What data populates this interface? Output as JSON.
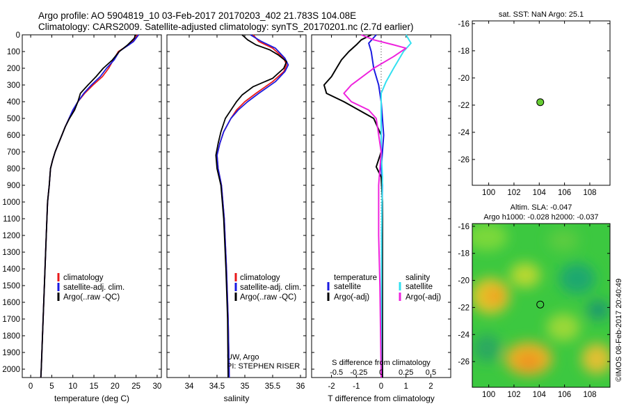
{
  "title": {
    "line1": "Argo profile: AO 5904819_10 03-Feb-2017 20170203_402 21.783S 104.08E",
    "line2": "Climatology: CARS2009. Satellite-adjusted climatology: synTS_20170201.nc (2.7d earlier)"
  },
  "colors": {
    "climatology": "#e8181a",
    "satellite": "#1a1ae0",
    "argo": "#000000",
    "salinity_sat": "#33e0f0",
    "salinity_argo": "#ee22dd",
    "dot": "#66cc33"
  },
  "depth_axis": {
    "ylim": [
      0,
      2050
    ],
    "ticks": [
      0,
      100,
      200,
      300,
      400,
      500,
      600,
      700,
      800,
      900,
      1000,
      1100,
      1200,
      1300,
      1400,
      1500,
      1600,
      1700,
      1800,
      1900,
      2000
    ]
  },
  "chart_data": [
    {
      "type": "line",
      "panel": "temperature",
      "xlabel": "temperature (deg C)",
      "xlim": [
        -2,
        31
      ],
      "xticks": [
        0,
        5,
        10,
        15,
        20,
        25,
        30
      ],
      "ylim": [
        0,
        2050
      ],
      "legend": [
        "climatology",
        "satellite-adj. clim.",
        "Argo(..raw -QC)"
      ],
      "series": [
        {
          "name": "climatology",
          "color": "#e8181a",
          "points": [
            [
              25.3,
              0
            ],
            [
              24.8,
              20
            ],
            [
              24.2,
              40
            ],
            [
              23.3,
              60
            ],
            [
              22,
              80
            ],
            [
              20.8,
              100
            ],
            [
              19.6,
              150
            ],
            [
              18.5,
              200
            ],
            [
              17,
              250
            ],
            [
              14.8,
              300
            ],
            [
              12.8,
              350
            ],
            [
              11.2,
              400
            ],
            [
              10.1,
              450
            ],
            [
              9.1,
              500
            ],
            [
              8.2,
              550
            ],
            [
              7.4,
              600
            ],
            [
              6.6,
              650
            ],
            [
              5.8,
              700
            ],
            [
              5.2,
              750
            ],
            [
              4.7,
              800
            ],
            [
              4.4,
              900
            ],
            [
              4.0,
              1000
            ],
            [
              3.7,
              1200
            ],
            [
              3.4,
              1400
            ],
            [
              3.1,
              1600
            ],
            [
              2.8,
              1800
            ],
            [
              2.5,
              2000
            ],
            [
              2.4,
              2050
            ]
          ]
        },
        {
          "name": "satellite-adj. clim.",
          "color": "#1a1ae0",
          "points": [
            [
              25.6,
              0
            ],
            [
              25,
              20
            ],
            [
              24.4,
              40
            ],
            [
              23.3,
              60
            ],
            [
              22.1,
              80
            ],
            [
              21,
              100
            ],
            [
              19.8,
              150
            ],
            [
              18,
              200
            ],
            [
              16.5,
              250
            ],
            [
              14.4,
              300
            ],
            [
              12.6,
              350
            ],
            [
              11.2,
              400
            ],
            [
              10,
              450
            ],
            [
              9.1,
              500
            ],
            [
              8.2,
              550
            ],
            [
              7.4,
              600
            ],
            [
              6.6,
              650
            ],
            [
              5.8,
              700
            ],
            [
              5.2,
              750
            ],
            [
              4.7,
              800
            ],
            [
              4.4,
              900
            ],
            [
              4.0,
              1000
            ],
            [
              3.7,
              1200
            ],
            [
              3.4,
              1400
            ],
            [
              3.1,
              1600
            ],
            [
              2.8,
              1800
            ],
            [
              2.5,
              2000
            ],
            [
              2.4,
              2050
            ]
          ]
        },
        {
          "name": "Argo(..raw -QC)",
          "color": "#000000",
          "points": [
            [
              24.8,
              0
            ],
            [
              24.6,
              20
            ],
            [
              23.8,
              40
            ],
            [
              23,
              60
            ],
            [
              22,
              80
            ],
            [
              21,
              100
            ],
            [
              19.4,
              150
            ],
            [
              17.2,
              200
            ],
            [
              15.5,
              250
            ],
            [
              13.6,
              300
            ],
            [
              11.8,
              350
            ],
            [
              11.2,
              400
            ],
            [
              10.4,
              450
            ],
            [
              9.2,
              500
            ],
            [
              8.2,
              550
            ],
            [
              7.4,
              600
            ],
            [
              6.6,
              650
            ],
            [
              5.8,
              700
            ],
            [
              5.2,
              750
            ],
            [
              4.7,
              800
            ],
            [
              4.4,
              900
            ],
            [
              4.0,
              1000
            ],
            [
              3.7,
              1200
            ],
            [
              3.4,
              1400
            ],
            [
              3.1,
              1600
            ],
            [
              2.8,
              1800
            ],
            [
              2.5,
              2000
            ],
            [
              2.4,
              2050
            ]
          ]
        }
      ]
    },
    {
      "type": "line",
      "panel": "salinity",
      "xlabel": "salinity",
      "xlim": [
        33.6,
        36.1
      ],
      "xticks": [
        34,
        34.5,
        35,
        35.5,
        36
      ],
      "ylim": [
        0,
        2050
      ],
      "legend": [
        "climatology",
        "satellite-adj. clim.",
        "Argo(..raw -QC)"
      ],
      "annotations": [
        "UW, Argo",
        "PI: STEPHEN RISER"
      ],
      "series": [
        {
          "name": "climatology",
          "color": "#e8181a",
          "points": [
            [
              35.15,
              0
            ],
            [
              35.25,
              40
            ],
            [
              35.5,
              80
            ],
            [
              35.7,
              140
            ],
            [
              35.75,
              180
            ],
            [
              35.7,
              220
            ],
            [
              35.5,
              280
            ],
            [
              35.2,
              350
            ],
            [
              35.0,
              400
            ],
            [
              34.85,
              450
            ],
            [
              34.75,
              500
            ],
            [
              34.62,
              580
            ],
            [
              34.55,
              650
            ],
            [
              34.5,
              720
            ],
            [
              34.52,
              800
            ],
            [
              34.58,
              900
            ],
            [
              34.63,
              1100
            ],
            [
              34.67,
              1400
            ],
            [
              34.7,
              1700
            ],
            [
              34.72,
              2050
            ]
          ]
        },
        {
          "name": "satellite-adj. clim.",
          "color": "#1a1ae0",
          "points": [
            [
              35.1,
              0
            ],
            [
              35.3,
              40
            ],
            [
              35.55,
              80
            ],
            [
              35.72,
              140
            ],
            [
              35.78,
              180
            ],
            [
              35.72,
              220
            ],
            [
              35.55,
              280
            ],
            [
              35.25,
              350
            ],
            [
              35.05,
              400
            ],
            [
              34.88,
              450
            ],
            [
              34.75,
              500
            ],
            [
              34.62,
              580
            ],
            [
              34.55,
              650
            ],
            [
              34.5,
              720
            ],
            [
              34.52,
              800
            ],
            [
              34.58,
              900
            ],
            [
              34.63,
              1100
            ],
            [
              34.67,
              1400
            ],
            [
              34.7,
              1700
            ],
            [
              34.72,
              2050
            ]
          ]
        },
        {
          "name": "Argo(..raw -QC)",
          "color": "#000000",
          "points": [
            [
              34.95,
              0
            ],
            [
              35.05,
              30
            ],
            [
              35.2,
              60
            ],
            [
              35.45,
              90
            ],
            [
              35.6,
              120
            ],
            [
              35.75,
              160
            ],
            [
              35.7,
              200
            ],
            [
              35.5,
              260
            ],
            [
              35.15,
              310
            ],
            [
              34.95,
              360
            ],
            [
              34.85,
              400
            ],
            [
              34.75,
              450
            ],
            [
              34.65,
              500
            ],
            [
              34.57,
              580
            ],
            [
              34.52,
              650
            ],
            [
              34.48,
              720
            ],
            [
              34.5,
              800
            ],
            [
              34.57,
              900
            ],
            [
              34.62,
              1100
            ],
            [
              34.66,
              1400
            ],
            [
              34.69,
              1700
            ],
            [
              34.7,
              2050
            ]
          ]
        }
      ]
    },
    {
      "type": "line",
      "panel": "differences",
      "xlabel": "T difference from climatology",
      "xlim": [
        -2.8,
        2.8
      ],
      "xticks": [
        -2,
        -1,
        0,
        1,
        2
      ],
      "top_xlabel": "S difference from climatology",
      "top_xticks": [
        "-0.5",
        "-0.25",
        "0",
        "0.25",
        "0.5"
      ],
      "ylim": [
        0,
        2050
      ],
      "legend_temperature": [
        "temperature",
        "satellite",
        "Argo(-adj)"
      ],
      "legend_salinity": [
        "salinity",
        "satellite",
        "Argo(-adj)"
      ],
      "series": [
        {
          "name": "satellite",
          "color": "#1a1ae0",
          "points": [
            [
              -0.2,
              0
            ],
            [
              -0.5,
              50
            ],
            [
              -0.4,
              100
            ],
            [
              -0.3,
              200
            ],
            [
              -0.1,
              300
            ],
            [
              0,
              400
            ],
            [
              0.05,
              500
            ],
            [
              0.1,
              600
            ],
            [
              0.05,
              700
            ],
            [
              0,
              800
            ],
            [
              0.05,
              900
            ],
            [
              0.02,
              1200
            ],
            [
              0.02,
              1600
            ],
            [
              0.05,
              2050
            ]
          ]
        },
        {
          "name": "Argo(-adj)",
          "color": "#000000",
          "points": [
            [
              -0.4,
              0
            ],
            [
              -0.8,
              30
            ],
            [
              -1.0,
              60
            ],
            [
              -1.3,
              100
            ],
            [
              -1.6,
              150
            ],
            [
              -1.8,
              200
            ],
            [
              -2.0,
              250
            ],
            [
              -2.3,
              300
            ],
            [
              -2.2,
              350
            ],
            [
              -1.5,
              400
            ],
            [
              -0.9,
              450
            ],
            [
              -0.3,
              500
            ],
            [
              0,
              600
            ],
            [
              0,
              700
            ],
            [
              -0.2,
              790
            ],
            [
              0,
              850
            ],
            [
              0.05,
              1000
            ],
            [
              0.05,
              1500
            ],
            [
              0.05,
              2050
            ]
          ]
        },
        {
          "name": "salinity satellite",
          "color": "#33e0f0",
          "points": [
            [
              1.0,
              0
            ],
            [
              1.2,
              50
            ],
            [
              0.9,
              100
            ],
            [
              0.5,
              200
            ],
            [
              0.2,
              280
            ],
            [
              0,
              350
            ],
            [
              0,
              500
            ],
            [
              0,
              700
            ],
            [
              0.05,
              850
            ],
            [
              0.02,
              1200
            ],
            [
              0,
              2050
            ]
          ]
        },
        {
          "name": "salinity Argo(-adj)",
          "color": "#ee22dd",
          "points": [
            [
              -0.8,
              0
            ],
            [
              -0.3,
              30
            ],
            [
              0.5,
              60
            ],
            [
              1.0,
              80
            ],
            [
              0.5,
              130
            ],
            [
              -0.3,
              200
            ],
            [
              -1.2,
              300
            ],
            [
              -1.5,
              350
            ],
            [
              -1.2,
              400
            ],
            [
              -0.5,
              450
            ],
            [
              -0.2,
              500
            ],
            [
              0,
              700
            ],
            [
              -0.1,
              900
            ],
            [
              -0.1,
              1200
            ],
            [
              -0.05,
              1500
            ],
            [
              0,
              2050
            ]
          ]
        }
      ]
    },
    {
      "type": "scatter",
      "panel": "sst-map",
      "title": "sat. SST: NaN Argo: 25.1",
      "xlim": [
        98.7,
        109.6
      ],
      "ylim": [
        -27.9,
        -15.8
      ],
      "xticks": [
        100,
        102,
        104,
        106,
        108
      ],
      "yticks": [
        -16,
        -18,
        -20,
        -22,
        -24,
        -26
      ],
      "points": [
        [
          104.08,
          -21.783
        ]
      ]
    },
    {
      "type": "heatmap",
      "panel": "sla-map",
      "title_line1": "Altim. SLA: -0.047",
      "title_line2": "Argo h1000: -0.028 h2000: -0.037",
      "xlim": [
        98.7,
        109.6
      ],
      "ylim": [
        -27.9,
        -15.8
      ],
      "xticks": [
        100,
        102,
        104,
        106,
        108
      ],
      "yticks": [
        -16,
        -18,
        -20,
        -22,
        -24,
        -26
      ],
      "points": [
        [
          104.08,
          -21.783
        ]
      ],
      "side_label": "©IMOS 08-Feb-2017 20:40:49"
    }
  ]
}
